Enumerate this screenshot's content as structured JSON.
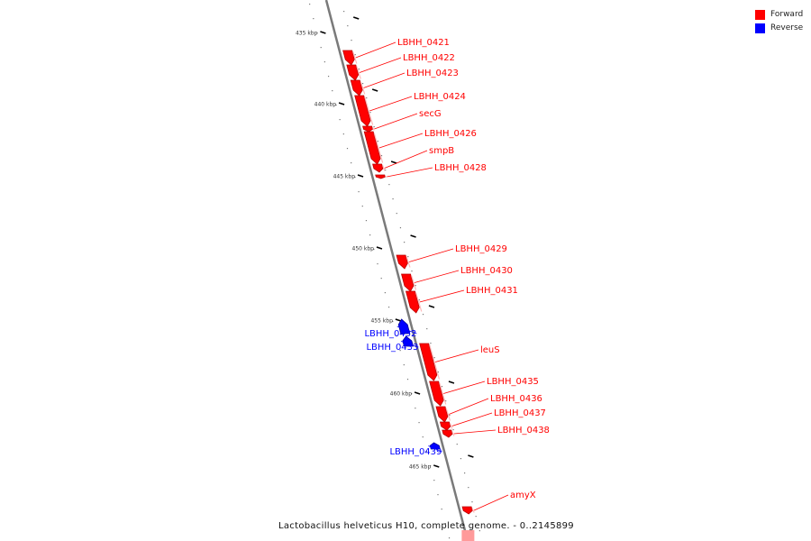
{
  "legend": {
    "forward": {
      "label": "Forward",
      "color": "#ff0000"
    },
    "reverse": {
      "label": "Reverse",
      "color": "#0000ff"
    }
  },
  "caption": "Lactobacillus helveticus H10, complete genome. - 0..2145899",
  "ticks": [
    {
      "label": "435 kbp",
      "kbp": 435
    },
    {
      "label": "440 kbp",
      "kbp": 440
    },
    {
      "label": "445 kbp",
      "kbp": 445
    },
    {
      "label": "450 kbp",
      "kbp": 450
    },
    {
      "label": "455 kbp",
      "kbp": 455
    },
    {
      "label": "460 kbp",
      "kbp": 460
    },
    {
      "label": "465 kbp",
      "kbp": 465
    }
  ],
  "genes": [
    {
      "name": "LBHH_0421",
      "strand": "forward"
    },
    {
      "name": "LBHH_0422",
      "strand": "forward"
    },
    {
      "name": "LBHH_0423",
      "strand": "forward"
    },
    {
      "name": "LBHH_0424",
      "strand": "forward"
    },
    {
      "name": "secG",
      "strand": "forward"
    },
    {
      "name": "LBHH_0426",
      "strand": "forward"
    },
    {
      "name": "smpB",
      "strand": "forward"
    },
    {
      "name": "LBHH_0428",
      "strand": "forward"
    },
    {
      "name": "LBHH_0429",
      "strand": "forward"
    },
    {
      "name": "LBHH_0430",
      "strand": "forward"
    },
    {
      "name": "LBHH_0431",
      "strand": "forward"
    },
    {
      "name": "LBHH_0432",
      "strand": "reverse"
    },
    {
      "name": "LBHH_0433",
      "strand": "reverse"
    },
    {
      "name": "leuS",
      "strand": "forward"
    },
    {
      "name": "LBHH_0435",
      "strand": "forward"
    },
    {
      "name": "LBHH_0436",
      "strand": "forward"
    },
    {
      "name": "LBHH_0437",
      "strand": "forward"
    },
    {
      "name": "LBHH_0438",
      "strand": "forward"
    },
    {
      "name": "LBHH_0439",
      "strand": "reverse"
    },
    {
      "name": "amyX",
      "strand": "forward"
    }
  ]
}
